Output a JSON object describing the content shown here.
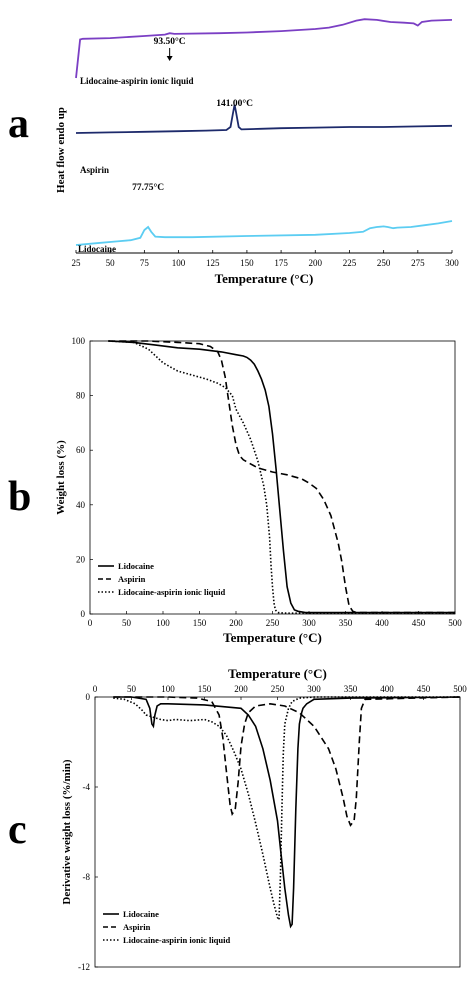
{
  "chart_data": [
    {
      "panel": "a",
      "type": "line",
      "xlabel": "Temperature (°C)",
      "ylabel": "Heat flow endo up",
      "xlim": [
        25,
        300
      ],
      "xticks": [
        25,
        50,
        75,
        100,
        125,
        150,
        175,
        200,
        225,
        250,
        275,
        300
      ],
      "series": [
        {
          "name": "Lidocaine-aspirin ionic liquid",
          "color": "#7b3fc4",
          "x": [
            25,
            28,
            30,
            50,
            75,
            90,
            93.5,
            97,
            130,
            150,
            175,
            200,
            210,
            220,
            230,
            236,
            245,
            255,
            265,
            272,
            275,
            278,
            285,
            300
          ],
          "y": [
            20,
            75,
            76,
            77,
            80,
            82,
            84,
            83,
            84,
            85,
            87,
            90,
            92,
            96,
            102,
            104,
            103,
            100,
            99,
            98,
            95,
            100,
            102,
            103
          ]
        },
        {
          "name": "Aspirin",
          "color": "#1d2a6b",
          "x": [
            25,
            50,
            75,
            100,
            120,
            135,
            138,
            140,
            141,
            142,
            144,
            146,
            160,
            175,
            200,
            225,
            250,
            275,
            300
          ],
          "y": [
            45,
            46,
            47,
            48,
            49,
            50,
            55,
            80,
            92,
            80,
            55,
            51,
            52,
            53,
            54,
            55,
            55,
            56,
            57
          ]
        },
        {
          "name": "Lidocaine",
          "color": "#5ccdf2",
          "x": [
            25,
            40,
            55,
            65,
            72,
            75,
            77.75,
            80,
            83,
            90,
            110,
            150,
            200,
            225,
            235,
            240,
            245,
            250,
            253,
            257,
            260,
            270,
            280,
            290,
            300
          ],
          "y": [
            0,
            3,
            6,
            8,
            12,
            25,
            30,
            22,
            14,
            13,
            13,
            15,
            17,
            20,
            22,
            28,
            30,
            31,
            30,
            28,
            29,
            30,
            33,
            36,
            40
          ]
        }
      ],
      "annotations": [
        {
          "text": "93.50°C",
          "x": 93.5
        },
        {
          "text": "141.00°C",
          "x": 141
        },
        {
          "text": "77.75°C",
          "x": 77.75
        }
      ],
      "letter": "a"
    },
    {
      "panel": "b",
      "type": "line",
      "xlabel": "Temperature (°C)",
      "ylabel": "Weight loss (%)",
      "xlim": [
        0,
        500
      ],
      "ylim": [
        0,
        100
      ],
      "xticks": [
        0,
        50,
        100,
        150,
        200,
        250,
        300,
        350,
        400,
        450,
        500
      ],
      "yticks": [
        0,
        20,
        40,
        60,
        80,
        100
      ],
      "legend": "bottom-left",
      "series": [
        {
          "name": "Lidocaine",
          "dash": "solid",
          "x": [
            25,
            60,
            90,
            120,
            150,
            180,
            200,
            210,
            215,
            220,
            225,
            230,
            235,
            240,
            245,
            250,
            255,
            260,
            265,
            270,
            275,
            280,
            285,
            295,
            320,
            400,
            500
          ],
          "y": [
            100,
            99.5,
            98.5,
            97.5,
            97,
            96,
            95,
            94.5,
            94,
            93,
            91.5,
            89,
            86,
            82,
            76,
            66,
            53,
            38,
            23,
            10,
            4,
            1.5,
            1,
            0.5,
            0.5,
            0.5,
            0.5
          ]
        },
        {
          "name": "Aspirin",
          "dash": "dash",
          "x": [
            25,
            80,
            120,
            150,
            165,
            175,
            180,
            185,
            190,
            195,
            200,
            205,
            210,
            220,
            230,
            250,
            270,
            290,
            300,
            310,
            320,
            330,
            340,
            345,
            350,
            355,
            360,
            365,
            380,
            500
          ],
          "y": [
            100,
            100,
            99.5,
            99,
            98,
            96,
            93,
            87,
            78,
            69,
            62,
            58,
            56.5,
            55,
            53.5,
            52,
            51,
            49.5,
            48,
            46,
            42,
            36,
            26,
            19,
            10,
            3,
            1,
            0.5,
            0.5,
            0.5
          ]
        },
        {
          "name": "Lidocaine-aspirin ionic liquid",
          "dash": "dot",
          "x": [
            25,
            60,
            80,
            100,
            120,
            140,
            160,
            175,
            185,
            195,
            200,
            210,
            220,
            230,
            238,
            242,
            246,
            248,
            250,
            252,
            254,
            256,
            258,
            262,
            270,
            300,
            500
          ],
          "y": [
            100,
            99.5,
            97,
            92,
            89,
            87.5,
            86,
            84.5,
            83,
            80,
            75,
            70,
            64,
            56,
            47,
            40,
            28,
            18,
            10,
            4,
            1.5,
            0.8,
            0.5,
            0.4,
            0.3,
            0.3,
            0.3
          ]
        }
      ],
      "letter": "b"
    },
    {
      "panel": "c",
      "type": "line",
      "xlabel": "Temperature (°C)",
      "ylabel": "Derivative weight loss (%/min)",
      "xlim": [
        0,
        500
      ],
      "ylim": [
        -12,
        0
      ],
      "xticks": [
        0,
        50,
        100,
        150,
        200,
        250,
        300,
        350,
        400,
        450,
        500
      ],
      "yticks": [
        0,
        -4,
        -8,
        -12
      ],
      "legend": "bottom-left",
      "series": [
        {
          "name": "Lidocaine",
          "dash": "solid",
          "x": [
            25,
            50,
            70,
            75,
            78,
            80,
            82,
            85,
            90,
            100,
            150,
            200,
            210,
            220,
            230,
            240,
            250,
            255,
            260,
            265,
            268,
            270,
            272,
            275,
            278,
            280,
            283,
            285,
            290,
            300,
            350,
            500
          ],
          "y": [
            0,
            0,
            -0.1,
            -0.5,
            -1.2,
            -1.3,
            -0.8,
            -0.4,
            -0.3,
            -0.3,
            -0.35,
            -0.5,
            -0.8,
            -1.3,
            -2.3,
            -3.7,
            -5.5,
            -7,
            -8.5,
            -9.7,
            -10.2,
            -10.1,
            -8.5,
            -5,
            -2.3,
            -1.2,
            -0.7,
            -0.5,
            -0.3,
            -0.1,
            -0.05,
            0
          ]
        },
        {
          "name": "Aspirin",
          "dash": "dash",
          "x": [
            25,
            100,
            140,
            160,
            170,
            175,
            180,
            185,
            188,
            192,
            196,
            200,
            205,
            210,
            220,
            240,
            260,
            280,
            300,
            320,
            330,
            340,
            345,
            350,
            355,
            358,
            362,
            365,
            370,
            500
          ],
          "y": [
            0,
            0,
            -0.05,
            -0.2,
            -0.8,
            -1.8,
            -3.3,
            -4.8,
            -5.2,
            -5.0,
            -3.8,
            -2.2,
            -1.2,
            -0.7,
            -0.4,
            -0.3,
            -0.4,
            -0.7,
            -1.3,
            -2.3,
            -3.2,
            -4.5,
            -5.3,
            -5.7,
            -5.5,
            -4.5,
            -2,
            -0.5,
            -0.1,
            0
          ]
        },
        {
          "name": "Lidocaine-aspirin ionic liquid",
          "dash": "dot",
          "x": [
            25,
            40,
            55,
            65,
            70,
            80,
            90,
            100,
            110,
            130,
            150,
            160,
            170,
            180,
            190,
            200,
            210,
            220,
            230,
            240,
            245,
            250,
            252,
            254,
            256,
            258,
            260,
            265,
            270,
            280,
            300,
            500
          ],
          "y": [
            -0.05,
            -0.1,
            -0.3,
            -0.6,
            -0.8,
            -0.9,
            -1.0,
            -1.05,
            -1.0,
            -1.05,
            -1.0,
            -1.1,
            -1.3,
            -1.7,
            -2.4,
            -3.2,
            -4.3,
            -5.6,
            -7.0,
            -8.5,
            -9.2,
            -9.8,
            -9.9,
            -8,
            -5,
            -2.5,
            -1.2,
            -0.5,
            -0.2,
            -0.05,
            0,
            0
          ]
        }
      ],
      "letter": "c"
    }
  ]
}
